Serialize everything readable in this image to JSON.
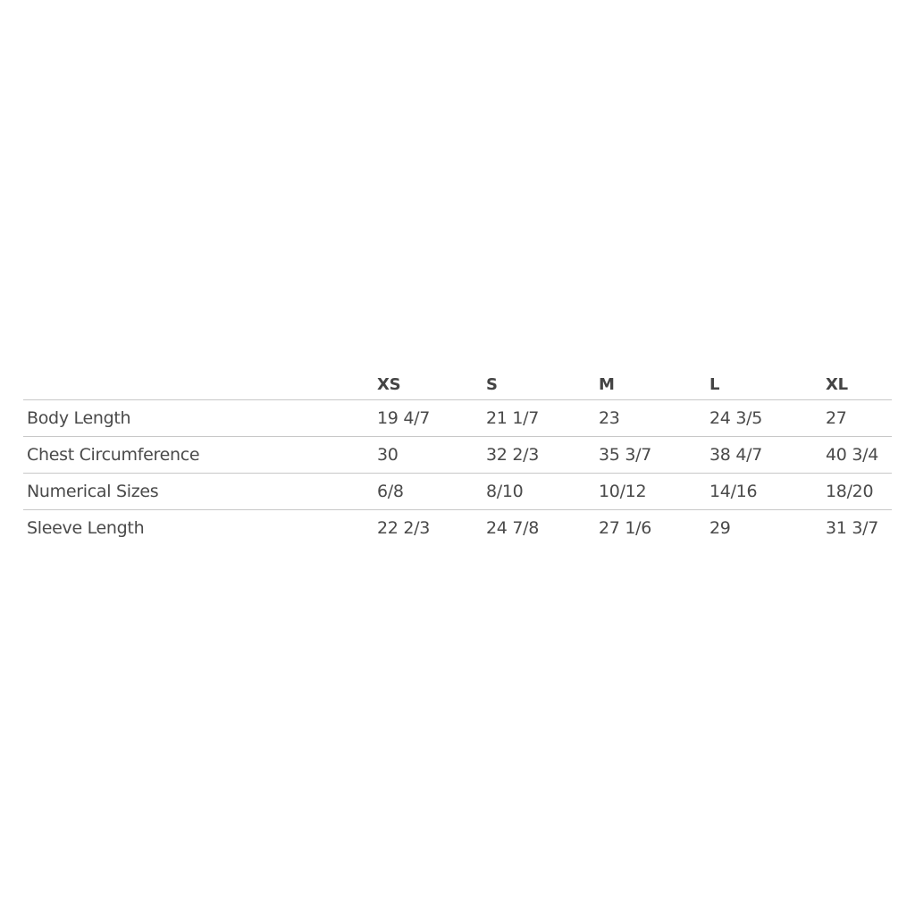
{
  "table": {
    "headers": [
      "",
      "XS",
      "S",
      "M",
      "L",
      "XL"
    ],
    "rows": [
      [
        "Body Length",
        "19 4/7",
        "21 1/7",
        "23",
        "24 3/5",
        "27"
      ],
      [
        "Chest Circumference",
        "30",
        "32 2/3",
        "35 3/7",
        "38 4/7",
        "40 3/4"
      ],
      [
        "Numerical Sizes",
        "6/8",
        "8/10",
        "10/12",
        "14/16",
        "18/20"
      ],
      [
        "Sleeve Length",
        "22 2/3",
        "24 7/8",
        "27 1/6",
        "29",
        "31 3/7"
      ]
    ]
  }
}
